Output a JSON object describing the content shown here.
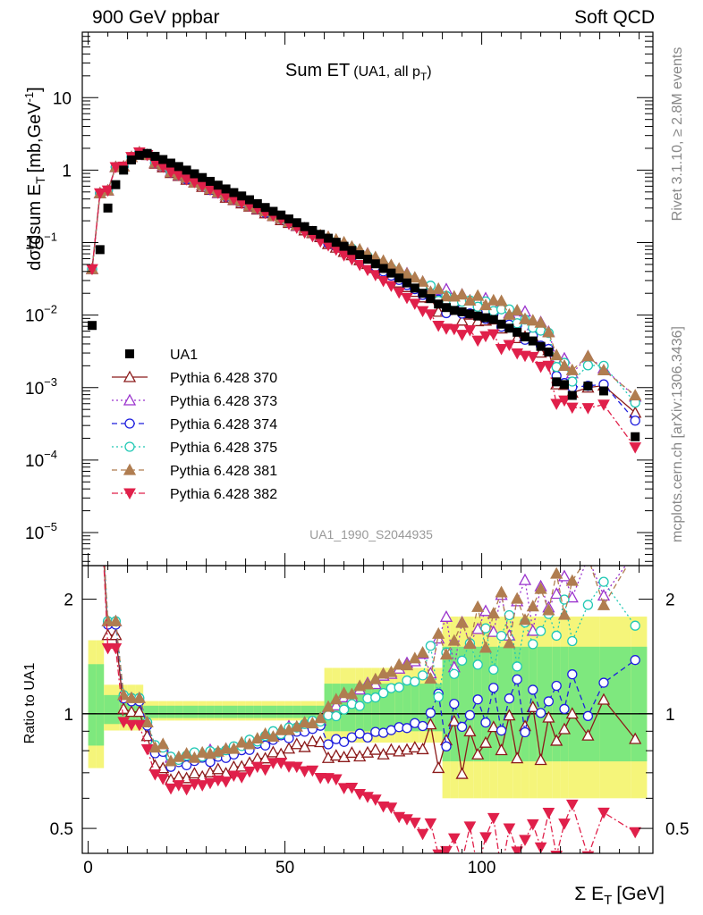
{
  "header": {
    "left": "900 GeV ppbar",
    "right": "Soft QCD"
  },
  "side_text": {
    "rivet": "Rivet 3.1.10, ≥ 2.8M events",
    "mcplots": "mcplots.cern.ch [arXiv:1306.3436]"
  },
  "chart_data": {
    "type": "scatter",
    "title_main": "Sum ET",
    "title_sub": "(UA1, all p",
    "title_sub_sub": "T",
    "title_sub_end": ")",
    "analysis": "UA1_1990_S2044935",
    "xlabel": "Σ E",
    "xlabel_sub": "T",
    "xlabel_unit": "[GeV]",
    "ylabel": "dσ/dsum E",
    "ylabel_sub": "T",
    "ylabel_unit": "[mb,GeV",
    "ylabel_sup": "-1",
    "ylabel_end": "]",
    "ratio_ylabel": "Ratio to UA1",
    "x_ticks": [
      "0",
      "50",
      "100"
    ],
    "main_y_ticks": [
      {
        "v": 10,
        "base": "10",
        "exp": ""
      },
      {
        "v": 1,
        "base": "1",
        "exp": ""
      },
      {
        "v": 0.1,
        "base": "10",
        "exp": "−1"
      },
      {
        "v": 0.01,
        "base": "10",
        "exp": "−2"
      },
      {
        "v": 0.001,
        "base": "10",
        "exp": "−3"
      },
      {
        "v": 0.0001,
        "base": "10",
        "exp": "−4"
      },
      {
        "v": 1e-05,
        "base": "10",
        "exp": "−5"
      }
    ],
    "ratio_y_ticks": [
      "2",
      "1",
      "0.5"
    ],
    "xlim": [
      -1.5,
      143.5
    ],
    "main_ylog": true,
    "main_ylim": [
      3.5e-06,
      80
    ],
    "ratio_ylog": true,
    "ratio_ylim": [
      0.43,
      2.45
    ],
    "data": {
      "name": "UA1",
      "x": [
        1,
        3,
        5,
        7,
        9,
        11,
        13,
        15,
        17,
        19,
        21,
        23,
        25,
        27,
        29,
        31,
        33,
        35,
        37,
        39,
        41,
        43,
        45,
        47,
        49,
        51,
        53,
        55,
        57,
        59,
        61,
        63,
        65,
        67,
        69,
        71,
        73,
        75,
        77,
        79,
        81,
        83,
        85,
        87,
        89,
        91,
        93,
        95,
        97,
        99,
        101,
        103,
        105,
        107,
        109,
        111,
        113,
        115,
        117,
        119,
        121,
        123,
        127,
        131,
        139
      ],
      "y": [
        0.0072,
        0.08,
        0.3,
        0.63,
        1.0,
        1.38,
        1.6,
        1.7,
        1.55,
        1.4,
        1.25,
        1.12,
        1.0,
        0.89,
        0.79,
        0.7,
        0.62,
        0.55,
        0.49,
        0.44,
        0.39,
        0.345,
        0.305,
        0.27,
        0.24,
        0.212,
        0.188,
        0.166,
        0.147,
        0.13,
        0.115,
        0.101,
        0.089,
        0.078,
        0.068,
        0.059,
        0.051,
        0.044,
        0.038,
        0.0325,
        0.0278,
        0.0236,
        0.02,
        0.0169,
        0.0142,
        0.0127,
        0.0116,
        0.0111,
        0.0104,
        0.0097,
        0.0092,
        0.0087,
        0.0075,
        0.0066,
        0.0058,
        0.005,
        0.0044,
        0.0037,
        0.0031,
        0.0012,
        0.0011,
        0.00078,
        0.00105,
        0.0009,
        0.00021
      ]
    },
    "mc": [
      {
        "name": "Pythia 6.428 370",
        "color": "#8b1a1a",
        "marker": "tri-up-open",
        "dash": "",
        "last": 0.00045,
        "rmul": 0.92
      },
      {
        "name": "Pythia 6.428 373",
        "color": "#9a32cd",
        "marker": "tri-up-open",
        "dash": "2,3",
        "last": 0.00075,
        "rmul": 1.0
      },
      {
        "name": "Pythia 6.428 374",
        "color": "#1e1ede",
        "marker": "circle-open",
        "dash": "6,4",
        "last": 0.00035,
        "rmul": 0.98
      },
      {
        "name": "Pythia 6.428 375",
        "color": "#20c8b4",
        "marker": "circle-open",
        "dash": "2,3",
        "last": 0.00062,
        "rmul": 1.0
      },
      {
        "name": "Pythia 6.428 381",
        "color": "#b07d50",
        "marker": "tri-up-filled",
        "dash": "6,4",
        "last": 0.00078,
        "rmul": 1.0
      },
      {
        "name": "Pythia 6.428 382",
        "color": "#e0204a",
        "marker": "tri-down-filled",
        "dash": "7,3,2,3",
        "last": 0.00015,
        "rmul": 0.85
      }
    ]
  }
}
